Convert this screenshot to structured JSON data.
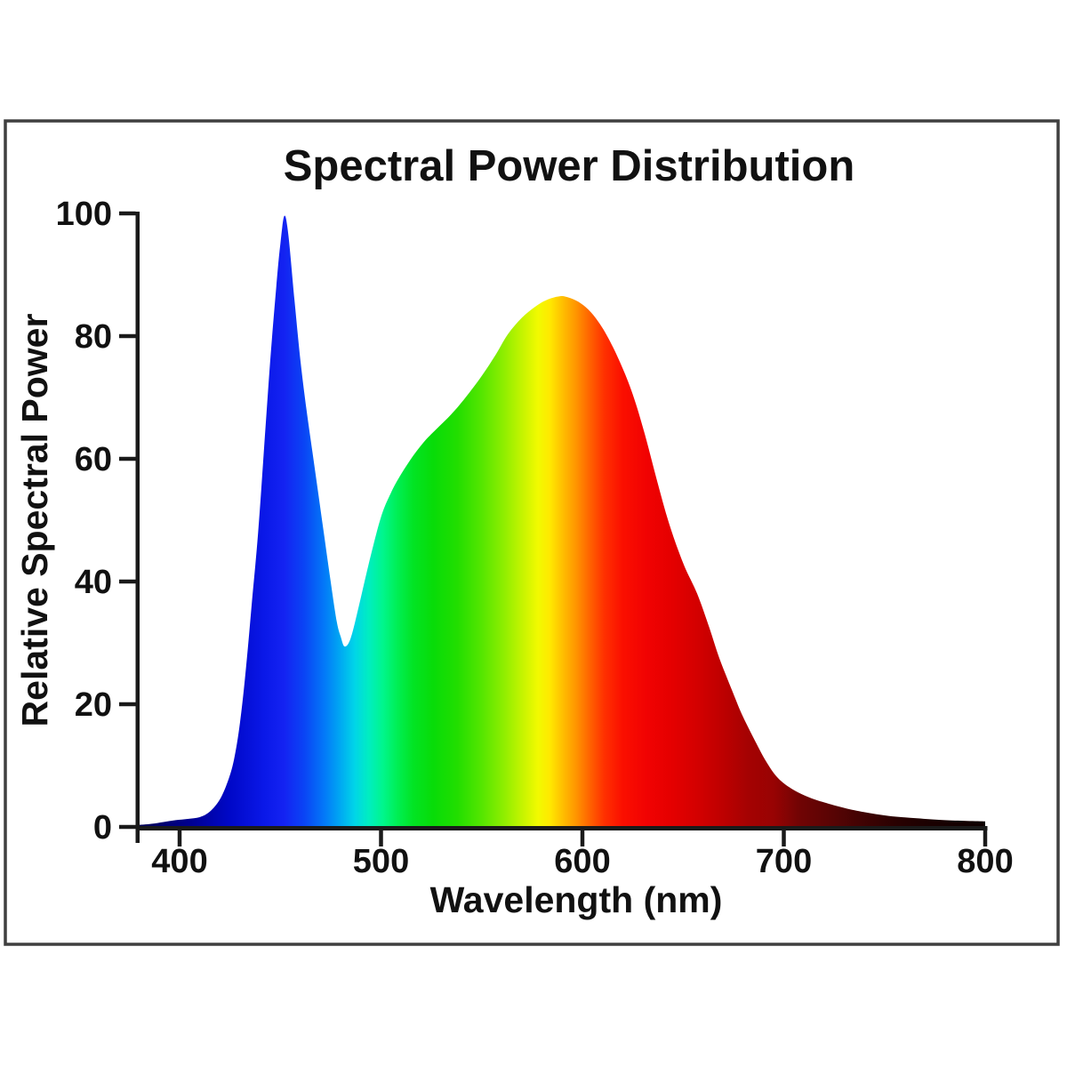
{
  "chart_data": {
    "type": "area",
    "title": "Spectral Power Distribution",
    "xlabel": "Wavelength (nm)",
    "ylabel": "Relative Spectral Power",
    "xlim": [
      379,
      800
    ],
    "ylim": [
      0,
      100
    ],
    "x_ticks": [
      400,
      500,
      600,
      700,
      800
    ],
    "y_ticks": [
      0,
      20,
      40,
      60,
      80,
      100
    ],
    "grid": false,
    "legend": false,
    "notable_points": {
      "blue_peak": {
        "wavelength_nm": 452,
        "value": 100
      },
      "valley": {
        "wavelength_nm": 482,
        "value": 29
      },
      "broad_peak": {
        "wavelength_nm": 589,
        "value": 86
      }
    },
    "points": [
      [
        379,
        0.3
      ],
      [
        386,
        0.5
      ],
      [
        392,
        0.8
      ],
      [
        398,
        1.1
      ],
      [
        404,
        1.3
      ],
      [
        410,
        1.6
      ],
      [
        415,
        2.5
      ],
      [
        420,
        4.5
      ],
      [
        424,
        7.5
      ],
      [
        427,
        11
      ],
      [
        430,
        17
      ],
      [
        433,
        26
      ],
      [
        436,
        37
      ],
      [
        439,
        48
      ],
      [
        442,
        62
      ],
      [
        445,
        76
      ],
      [
        448,
        88
      ],
      [
        450,
        95
      ],
      [
        452,
        99.6
      ],
      [
        454,
        96.5
      ],
      [
        457,
        86
      ],
      [
        460,
        76
      ],
      [
        463,
        68
      ],
      [
        466,
        61
      ],
      [
        469,
        54
      ],
      [
        472,
        47
      ],
      [
        475,
        40
      ],
      [
        478,
        33.5
      ],
      [
        480,
        31
      ],
      [
        482,
        29.4
      ],
      [
        485,
        30.8
      ],
      [
        489,
        36
      ],
      [
        494,
        43
      ],
      [
        500,
        50.5
      ],
      [
        505,
        54.5
      ],
      [
        510,
        57.5
      ],
      [
        516,
        60.5
      ],
      [
        522,
        63
      ],
      [
        528,
        65
      ],
      [
        535,
        67.3
      ],
      [
        542,
        70
      ],
      [
        550,
        73.5
      ],
      [
        557,
        77
      ],
      [
        563,
        80.3
      ],
      [
        570,
        83
      ],
      [
        577,
        84.9
      ],
      [
        583,
        86
      ],
      [
        589,
        86.5
      ],
      [
        593,
        86.3
      ],
      [
        598,
        85.6
      ],
      [
        603,
        84.3
      ],
      [
        608,
        82.3
      ],
      [
        613,
        79.6
      ],
      [
        619,
        75.5
      ],
      [
        625,
        70.5
      ],
      [
        631,
        64
      ],
      [
        637,
        56.5
      ],
      [
        643,
        49.5
      ],
      [
        650,
        43
      ],
      [
        657,
        38
      ],
      [
        663,
        32.5
      ],
      [
        668,
        27.5
      ],
      [
        674,
        22.5
      ],
      [
        679,
        18.5
      ],
      [
        685,
        14.5
      ],
      [
        691,
        10.8
      ],
      [
        697,
        8
      ],
      [
        704,
        6.2
      ],
      [
        712,
        4.9
      ],
      [
        720,
        4
      ],
      [
        730,
        3.1
      ],
      [
        740,
        2.4
      ],
      [
        752,
        1.8
      ],
      [
        766,
        1.4
      ],
      [
        780,
        1.1
      ],
      [
        800,
        0.9
      ]
    ],
    "spectrum_gradient": [
      {
        "nm": 379,
        "color": "#000050"
      },
      {
        "nm": 405,
        "color": "#000090"
      },
      {
        "nm": 425,
        "color": "#0008c8"
      },
      {
        "nm": 442,
        "color": "#0a18e8"
      },
      {
        "nm": 452,
        "color": "#1423f2"
      },
      {
        "nm": 462,
        "color": "#0a45f5"
      },
      {
        "nm": 472,
        "color": "#0379f8"
      },
      {
        "nm": 480,
        "color": "#00aaf2"
      },
      {
        "nm": 487,
        "color": "#00d5e8"
      },
      {
        "nm": 494,
        "color": "#00eec0"
      },
      {
        "nm": 501,
        "color": "#00f68c"
      },
      {
        "nm": 508,
        "color": "#00ef55"
      },
      {
        "nm": 516,
        "color": "#02e424"
      },
      {
        "nm": 526,
        "color": "#08dc08"
      },
      {
        "nm": 538,
        "color": "#22de00"
      },
      {
        "nm": 550,
        "color": "#55e600"
      },
      {
        "nm": 561,
        "color": "#8fee00"
      },
      {
        "nm": 570,
        "color": "#c4f400"
      },
      {
        "nm": 578,
        "color": "#f2fa00"
      },
      {
        "nm": 584,
        "color": "#ffe800"
      },
      {
        "nm": 590,
        "color": "#ffc000"
      },
      {
        "nm": 597,
        "color": "#ff9400"
      },
      {
        "nm": 604,
        "color": "#ff6000"
      },
      {
        "nm": 611,
        "color": "#ff3000"
      },
      {
        "nm": 620,
        "color": "#fb0f00"
      },
      {
        "nm": 632,
        "color": "#f10202"
      },
      {
        "nm": 645,
        "color": "#e40000"
      },
      {
        "nm": 658,
        "color": "#d20000"
      },
      {
        "nm": 670,
        "color": "#bd0000"
      },
      {
        "nm": 682,
        "color": "#a50202"
      },
      {
        "nm": 695,
        "color": "#980303"
      },
      {
        "nm": 708,
        "color": "#700404"
      },
      {
        "nm": 722,
        "color": "#5c0404"
      },
      {
        "nm": 738,
        "color": "#420303"
      },
      {
        "nm": 755,
        "color": "#2a0101"
      },
      {
        "nm": 772,
        "color": "#1b0101"
      },
      {
        "nm": 800,
        "color": "#0e0000"
      }
    ],
    "colors": {
      "axis": "#1a1a1a",
      "text": "#111111",
      "frame_border": "#3f3f3f",
      "background": "#ffffff"
    }
  }
}
